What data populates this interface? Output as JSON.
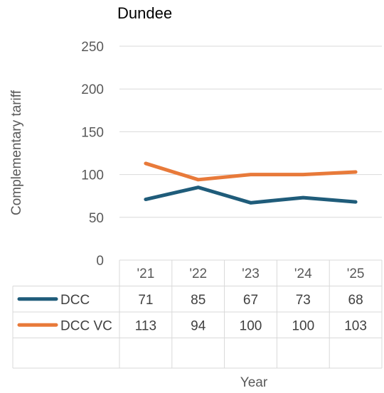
{
  "chart_data": {
    "type": "line",
    "title": "Dundee",
    "xlabel": "Year",
    "ylabel": "Complementary tariff",
    "categories": [
      "'21",
      "'22",
      "'23",
      "'24",
      "'25"
    ],
    "ylim": [
      0,
      250
    ],
    "yticks": [
      0,
      50,
      100,
      150,
      200,
      250
    ],
    "grid": true,
    "legend": "data-table",
    "series": [
      {
        "name": "DCC",
        "color": "#1f5c7a",
        "values": [
          71,
          85,
          67,
          73,
          68
        ]
      },
      {
        "name": "DCC VC",
        "color": "#e87a3a",
        "values": [
          113,
          94,
          100,
          100,
          103
        ]
      }
    ]
  }
}
